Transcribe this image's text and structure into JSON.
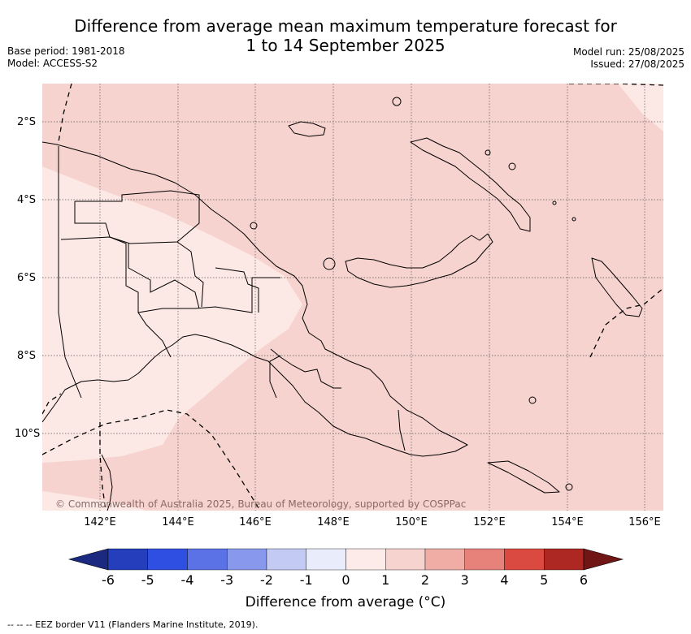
{
  "header": {
    "title_line1": "Difference from average mean maximum temperature forecast for",
    "title_line2": "1 to 14 September 2025",
    "base_period": "Base period: 1981-2018",
    "model": "Model: ACCESS-S2",
    "model_run": "Model run: 25/08/2025",
    "issued": "Issued: 27/08/2025"
  },
  "map": {
    "lat_labels": [
      "2°S",
      "4°S",
      "6°S",
      "8°S",
      "10°S"
    ],
    "lon_labels": [
      "142°E",
      "144°E",
      "146°E",
      "148°E",
      "150°E",
      "152°E",
      "154°E",
      "156°E"
    ],
    "copyright": "© Commonwealth of Australia 2025, Bureau of Meteorology, supported by COSPPac",
    "colors": {
      "zone_0_1": "#fce8e5",
      "zone_1_2": "#f6d3cf",
      "gridline": "#555555",
      "coast": "#000000"
    }
  },
  "colorbar": {
    "ticks": [
      "-6",
      "-5",
      "-4",
      "-3",
      "-2",
      "-1",
      "0",
      "1",
      "2",
      "3",
      "4",
      "5",
      "6"
    ],
    "colors": [
      "#1b2a80",
      "#243ebc",
      "#2f4fe2",
      "#5a72e6",
      "#8898ec",
      "#c3cbf5",
      "#e9ecfa",
      "#fcebe8",
      "#f6d3cf",
      "#f0ada6",
      "#e6827a",
      "#db4a40",
      "#ae2823",
      "#701614"
    ],
    "label": "Difference from average (°C)"
  },
  "footnote": "--  --  -- EEZ border V11 (Flanders Marine Institute, 2019)."
}
